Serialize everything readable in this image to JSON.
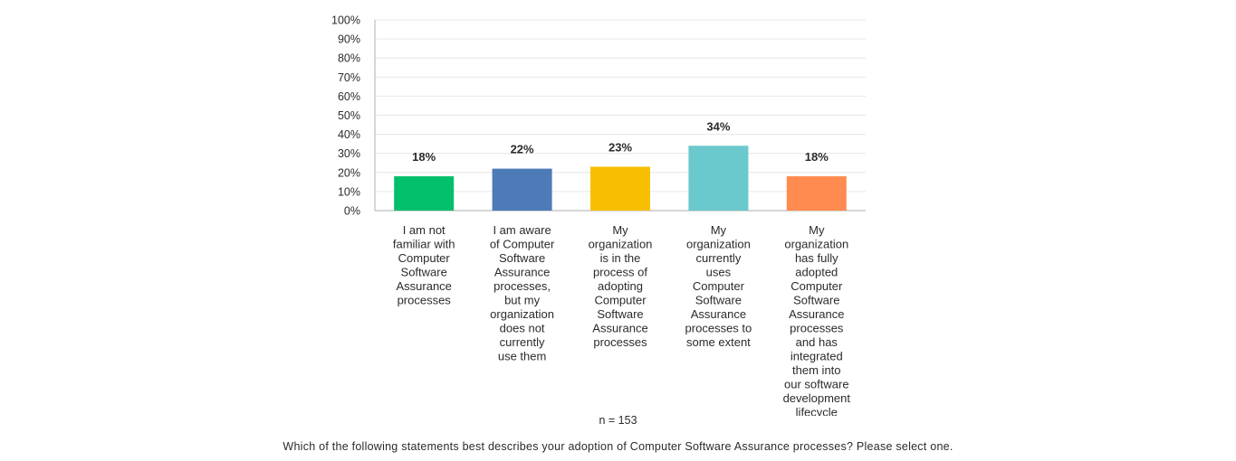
{
  "chart_data": {
    "type": "bar",
    "categories": [
      [
        "I am not",
        "familiar with",
        "Computer",
        "Software",
        "Assurance",
        "processes"
      ],
      [
        "I am aware",
        "of Computer",
        "Software",
        "Assurance",
        "processes,",
        "but my",
        "organization",
        "does not",
        "currently",
        "use them"
      ],
      [
        "My",
        "organization",
        "is in the",
        "process of",
        "adopting",
        "Computer",
        "Software",
        "Assurance",
        "processes"
      ],
      [
        "My",
        "organization",
        "currently",
        "uses",
        "Computer",
        "Software",
        "Assurance",
        "processes to",
        "some extent"
      ],
      [
        "My",
        "organization",
        "has fully",
        "adopted",
        "Computer",
        "Software",
        "Assurance",
        "processes",
        "and has",
        "integrated",
        "them into",
        "our software",
        "development",
        "lifecycle"
      ]
    ],
    "values": [
      18,
      22,
      23,
      34,
      18
    ],
    "value_labels": [
      "18%",
      "22%",
      "23%",
      "34%",
      "18%"
    ],
    "colors": [
      "#02bf6c",
      "#4d7bb8",
      "#f8be00",
      "#6ac9cc",
      "#ff8b50"
    ],
    "yticks": [
      "0%",
      "10%",
      "20%",
      "30%",
      "40%",
      "50%",
      "60%",
      "70%",
      "80%",
      "90%",
      "100%"
    ],
    "ylim": [
      0,
      100
    ],
    "grid": true,
    "title": "",
    "xlabel": "",
    "ylabel": ""
  },
  "sample_note": "n = 153",
  "question": "Which of the following statements best describes your adoption of Computer Software Assurance processes? Please select one."
}
